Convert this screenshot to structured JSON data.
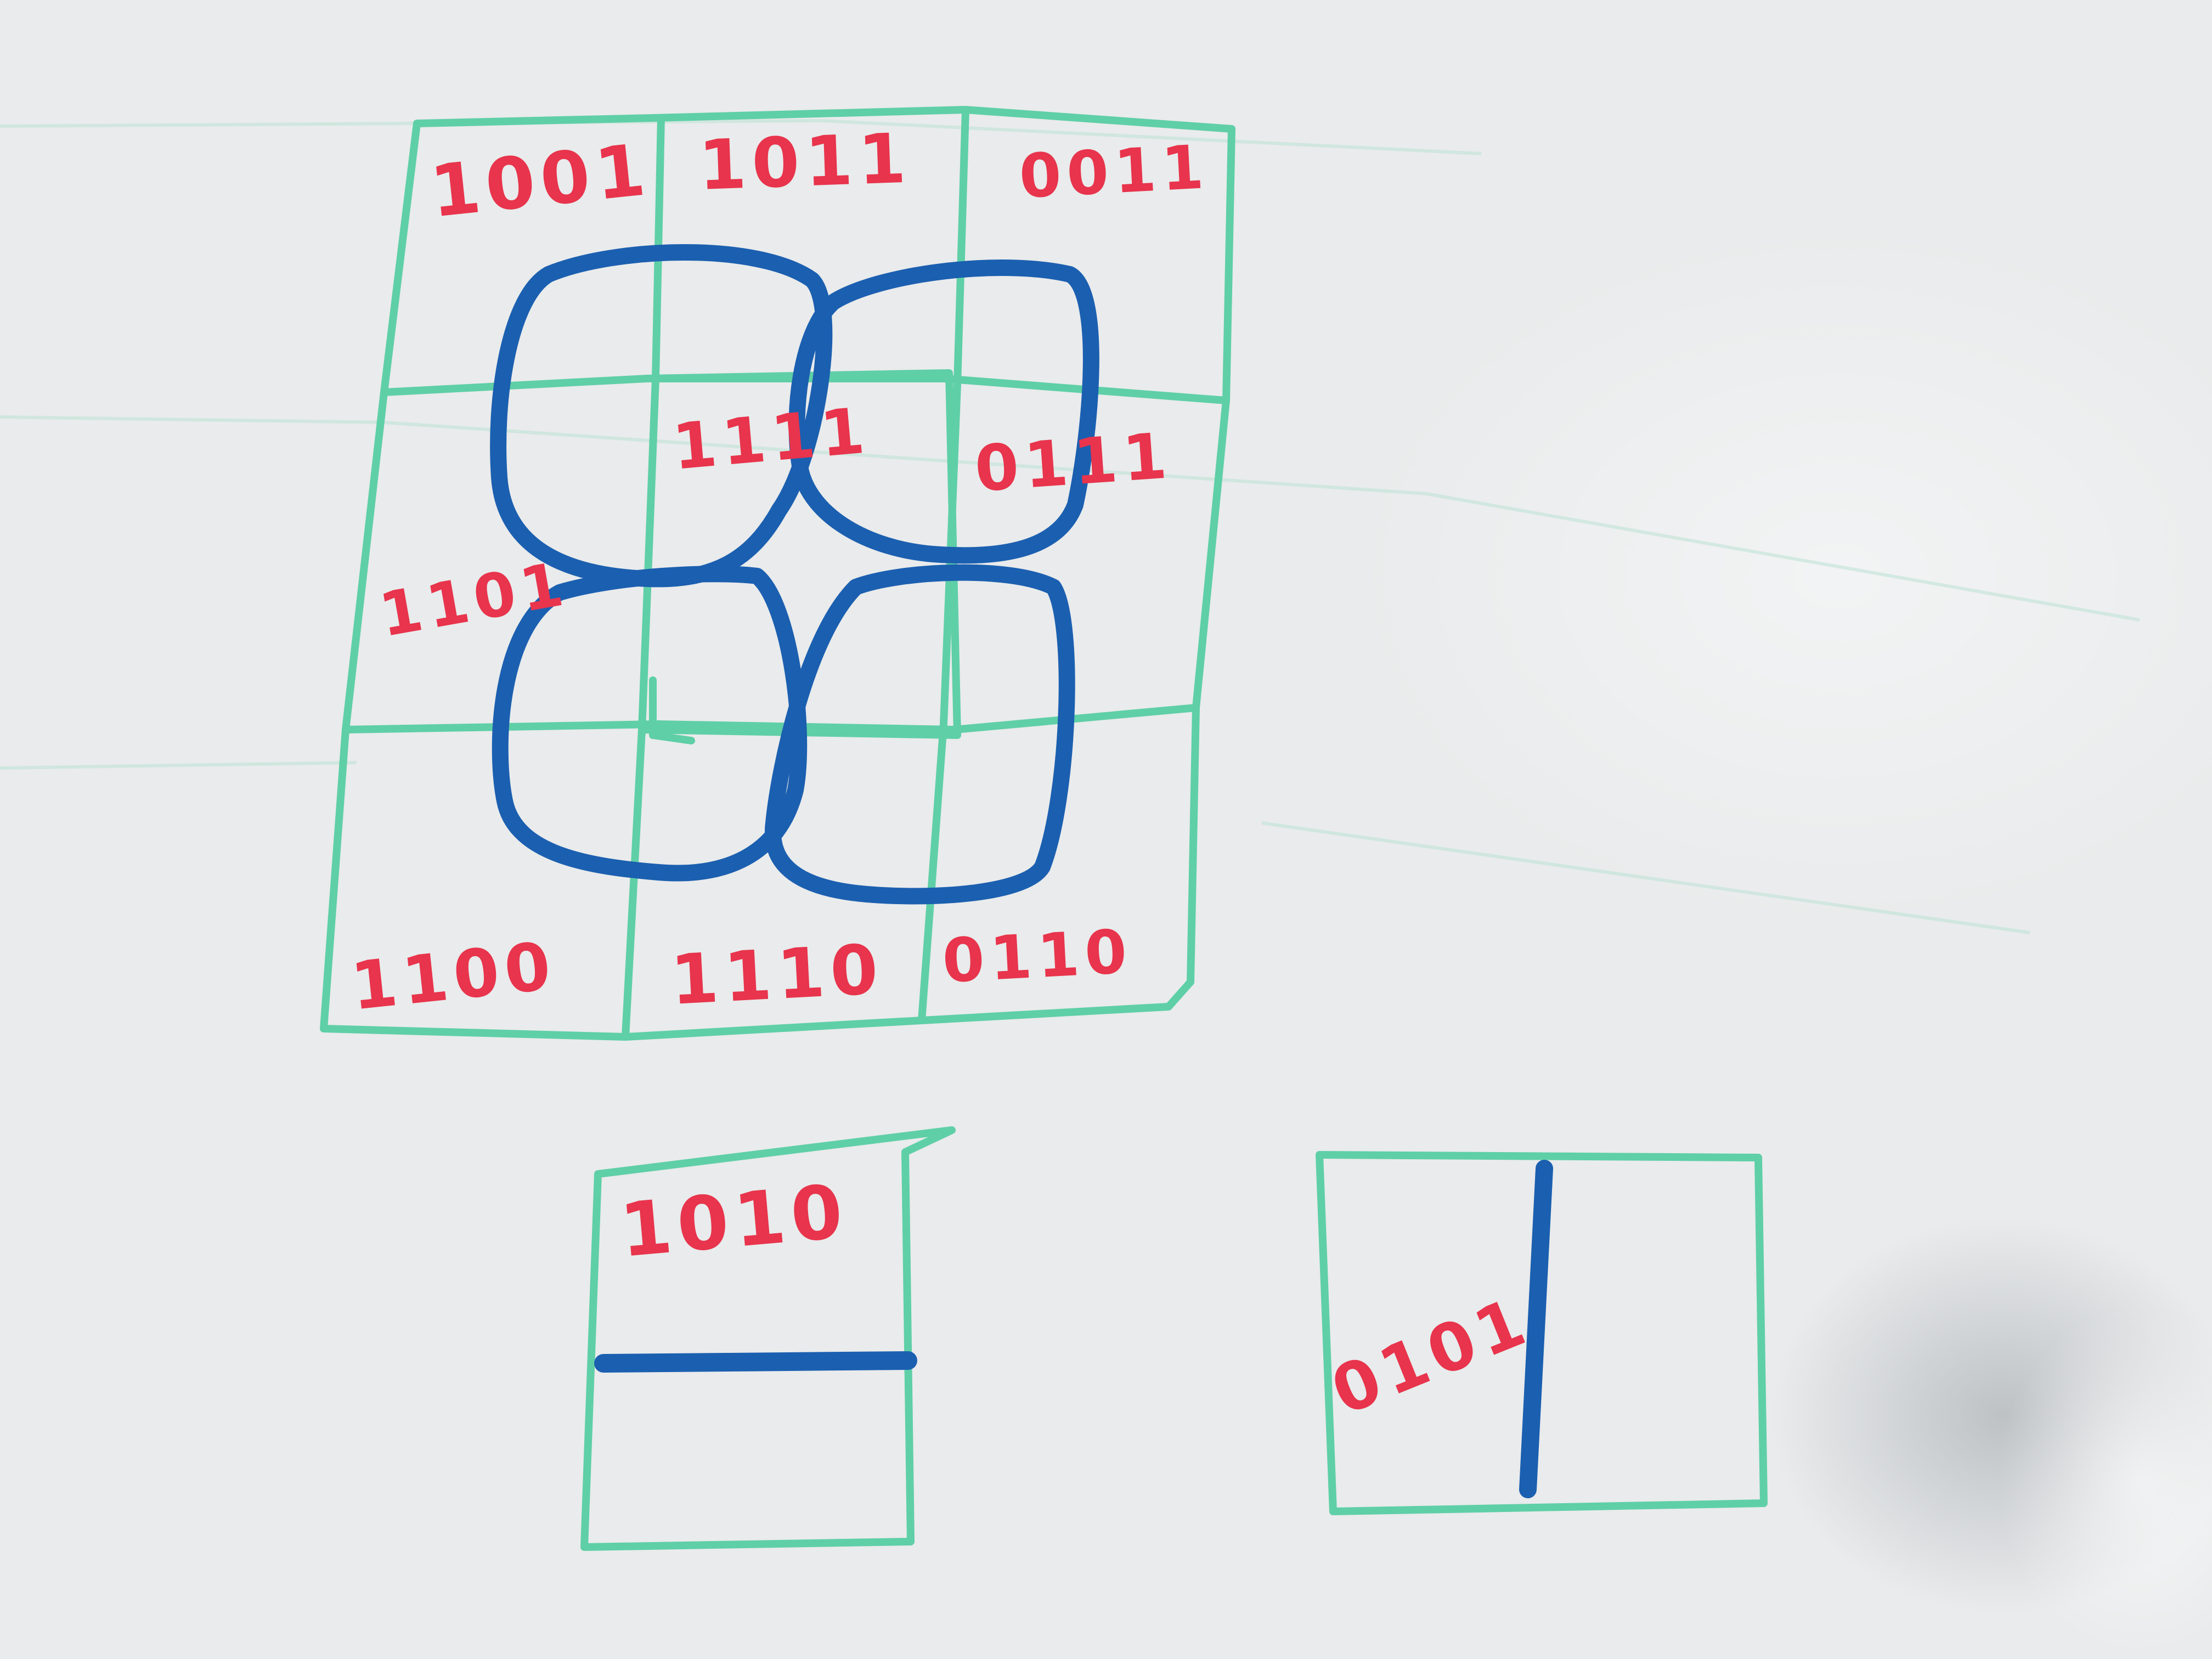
{
  "colors": {
    "board": "#e9ebec",
    "grid_green": "#5fcfa7",
    "marker_blue": "#1b5fb0",
    "marker_red": "#e8344c"
  },
  "grid_labels": [
    "1001",
    "1011",
    "0011",
    "1101",
    "1111",
    "0111",
    "1100",
    "1110",
    "0110"
  ],
  "extra_tiles": [
    {
      "label": "1010",
      "line": "horizontal"
    },
    {
      "label": "0101",
      "line": "vertical"
    }
  ]
}
